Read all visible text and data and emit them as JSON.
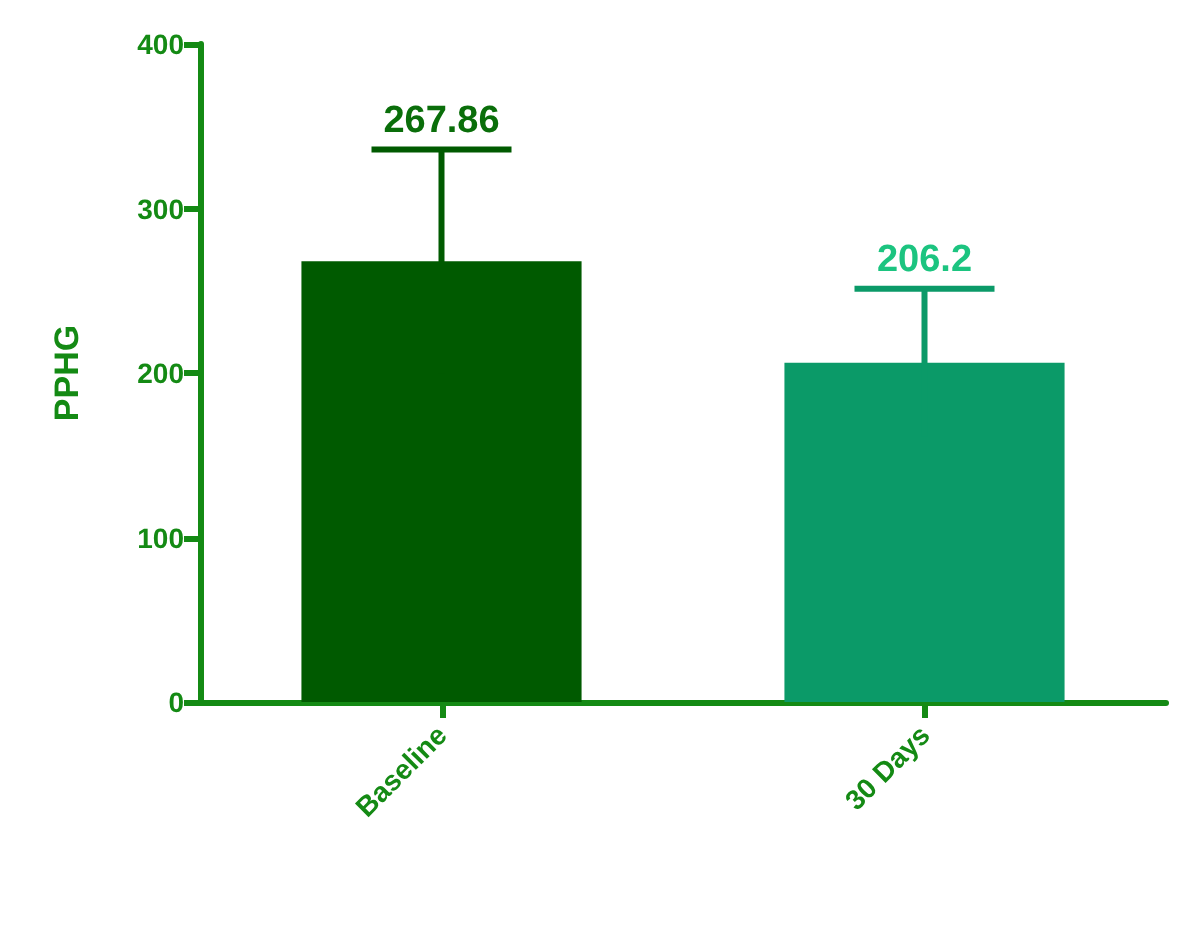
{
  "chart_data": {
    "type": "bar",
    "ylabel": "PPHG",
    "categories": [
      "Baseline",
      "30 Days"
    ],
    "values": [
      267.86,
      206.2
    ],
    "colors": [
      "#005a00",
      "#0b9a68"
    ],
    "errors": [
      68,
      45
    ],
    "data_labels": true,
    "ylim": [
      0,
      400
    ],
    "yticks": [
      0,
      100,
      200,
      300,
      400
    ],
    "grid": false
  }
}
